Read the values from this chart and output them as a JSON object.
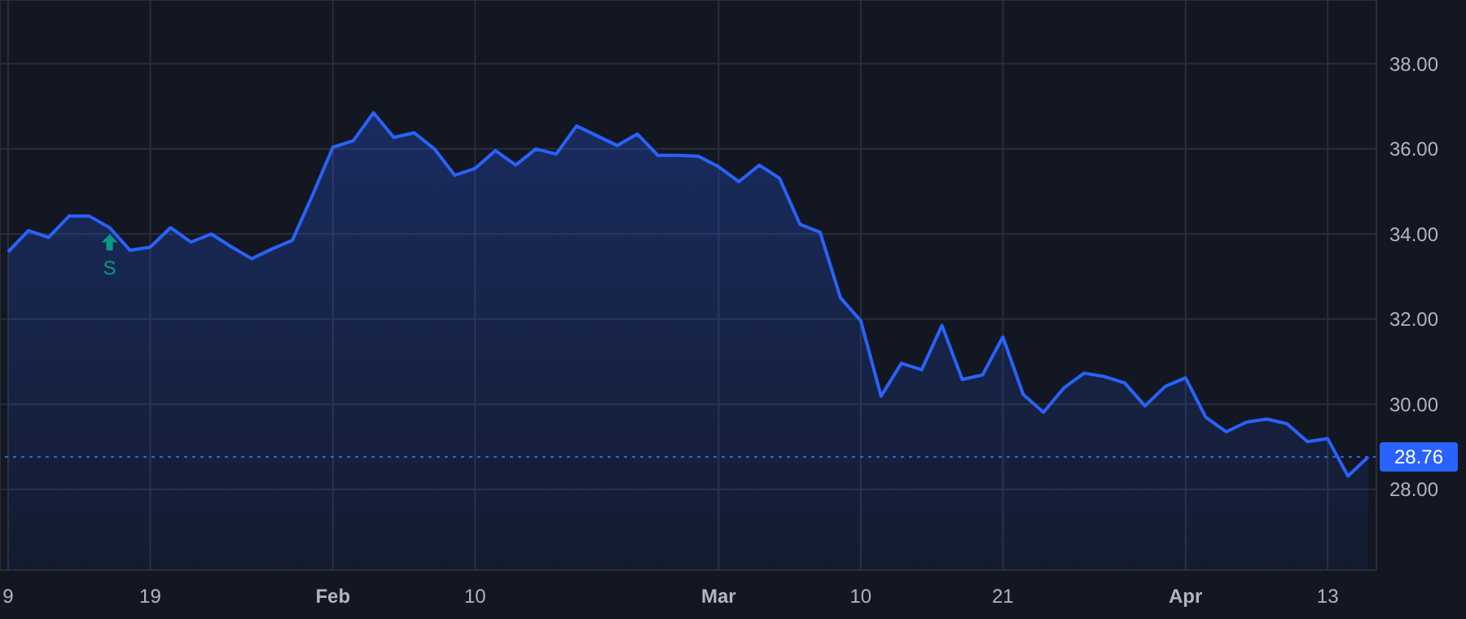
{
  "chart_data": {
    "type": "area",
    "categories": [
      "9",
      null,
      null,
      null,
      null,
      null,
      null,
      "19",
      null,
      null,
      null,
      null,
      null,
      null,
      null,
      null,
      "Feb",
      null,
      null,
      null,
      null,
      null,
      null,
      "10",
      null,
      null,
      null,
      null,
      null,
      null,
      null,
      null,
      null,
      null,
      null,
      "Mar",
      null,
      null,
      null,
      null,
      null,
      null,
      "10",
      null,
      null,
      null,
      null,
      null,
      null,
      "21",
      null,
      null,
      null,
      null,
      null,
      null,
      null,
      null,
      "Apr",
      null,
      null,
      null,
      null,
      null,
      null,
      "13",
      null,
      null
    ],
    "series": [
      {
        "color": "#2962ff",
        "values": [
          33.58,
          34.08,
          33.92,
          34.42,
          34.42,
          34.15,
          33.62,
          33.69,
          34.15,
          33.81,
          34.0,
          33.7,
          33.42,
          33.65,
          33.85,
          34.92,
          36.04,
          36.19,
          36.85,
          36.27,
          36.38,
          36.0,
          35.38,
          35.54,
          35.96,
          35.62,
          36.0,
          35.88,
          36.54,
          36.31,
          36.08,
          36.35,
          35.85,
          35.85,
          35.83,
          35.58,
          35.23,
          35.62,
          35.31,
          34.23,
          34.04,
          32.5,
          31.96,
          30.19,
          30.96,
          30.81,
          31.85,
          30.58,
          30.69,
          31.58,
          30.23,
          29.81,
          30.38,
          30.73,
          30.65,
          30.5,
          29.96,
          30.42,
          30.62,
          29.69,
          29.35,
          29.58,
          29.65,
          29.54,
          29.12,
          29.19,
          28.31,
          28.76
        ]
      }
    ],
    "ylim": [
      26.1,
      39.5
    ],
    "yticks": [
      {
        "value": 28,
        "label": "28.00"
      },
      {
        "value": 30,
        "label": "30.00"
      },
      {
        "value": 32,
        "label": "32.00"
      },
      {
        "value": 34,
        "label": "34.00"
      },
      {
        "value": 36,
        "label": "36.00"
      },
      {
        "value": 38,
        "label": "38.00"
      }
    ],
    "ref_lines": [
      {
        "axis": "y",
        "value": 28.76,
        "label": "28.76",
        "color": "#2962ff",
        "line_style": "dotted"
      }
    ],
    "annotations": [
      {
        "text": "S",
        "y": 34.15
      }
    ],
    "grid": true,
    "marker": "none",
    "line_style": "solid"
  }
}
